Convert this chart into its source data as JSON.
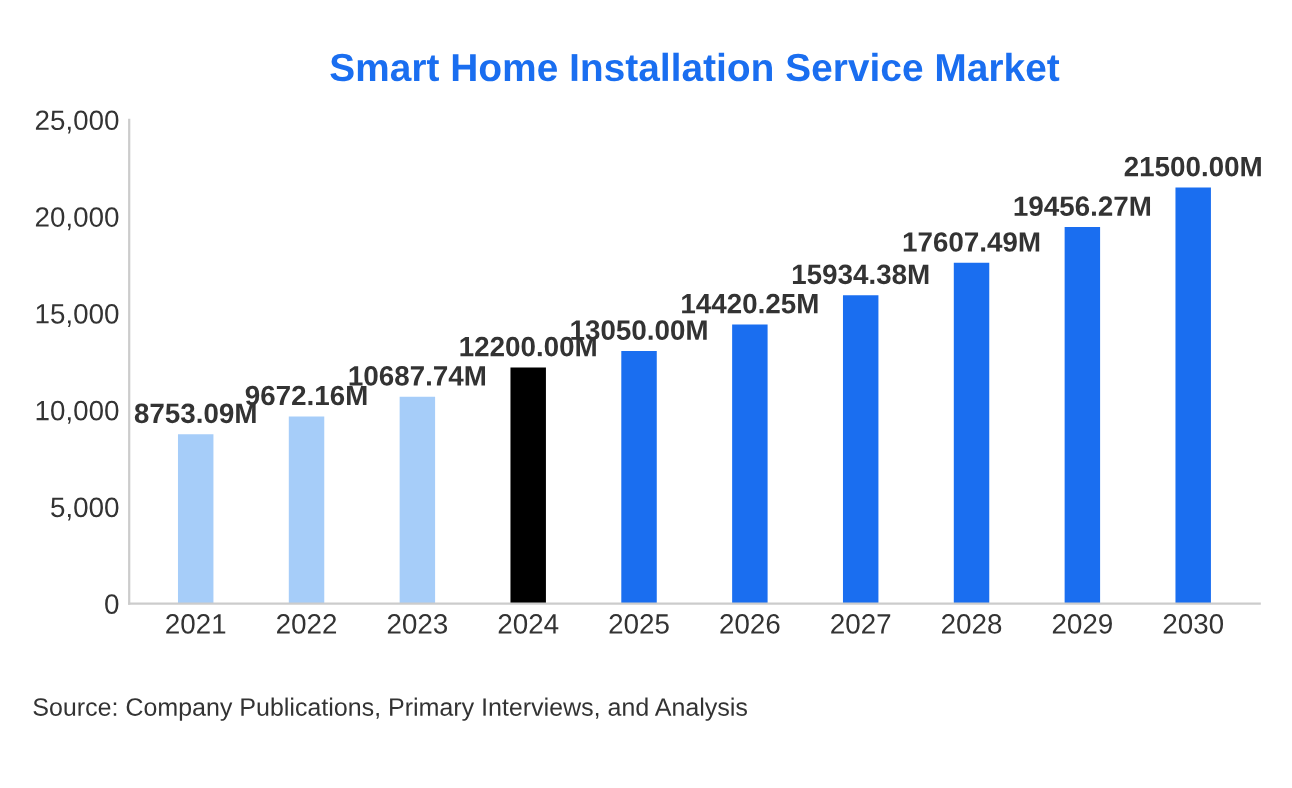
{
  "chart_data": {
    "type": "bar",
    "title": "Smart Home Installation Service Market",
    "categories": [
      "2021",
      "2022",
      "2023",
      "2024",
      "2025",
      "2026",
      "2027",
      "2028",
      "2029",
      "2030"
    ],
    "values": [
      8753.09,
      9672.16,
      10687.74,
      12200.0,
      13050.0,
      14420.25,
      15934.38,
      17607.49,
      19456.27,
      21500.0
    ],
    "colors": [
      "#a6cdf9",
      "#a6cdf9",
      "#a6cdf9",
      "#000000",
      "#1a6ef0",
      "#1a6ef0",
      "#1a6ef0",
      "#1a6ef0",
      "#1a6ef0",
      "#1a6ef0"
    ],
    "value_labels": [
      "8753.09M",
      "9672.16M",
      "10687.74M",
      "12200.00M",
      "13050.00M",
      "14420.25M",
      "15934.38M",
      "17607.49M",
      "19456.27M",
      "21500.00M"
    ],
    "ylim": [
      0,
      25000
    ],
    "yticks": [
      {
        "value": 0,
        "label": "0"
      },
      {
        "value": 5000,
        "label": "5,000"
      },
      {
        "value": 10000,
        "label": "10,000"
      },
      {
        "value": 15000,
        "label": "15,000"
      },
      {
        "value": 20000,
        "label": "20,000"
      },
      {
        "value": 25000,
        "label": "25,000"
      }
    ],
    "grid": false,
    "annotations": [
      "Source: Company Publications, Primary Interviews, and Analysis"
    ]
  }
}
